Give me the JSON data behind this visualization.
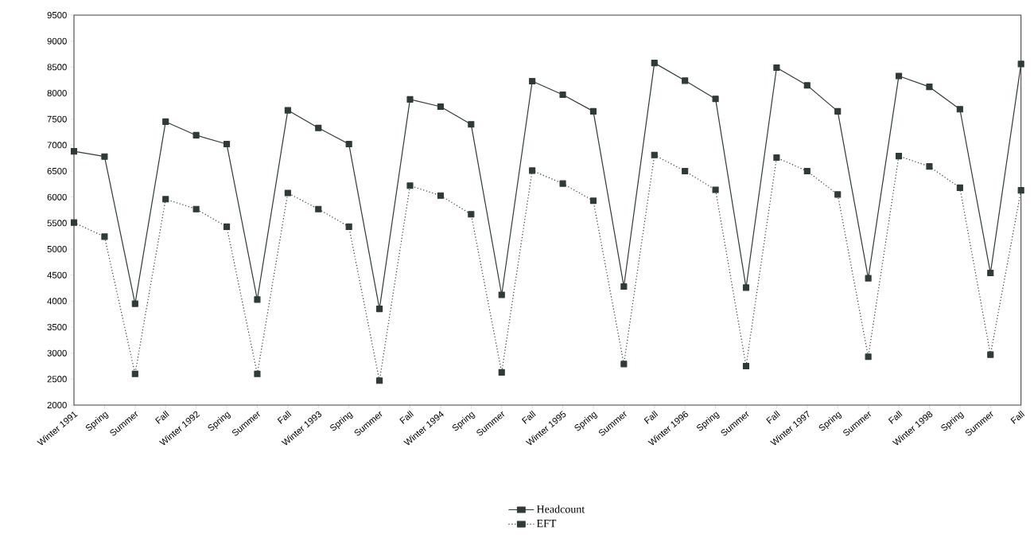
{
  "chart_data": {
    "type": "line",
    "categories": [
      "Winter 1991",
      "Spring",
      "Summer",
      "Fall",
      "Winter 1992",
      "Spring",
      "Summer",
      "Fall",
      "Winter 1993",
      "Spring",
      "Summer",
      "Fall",
      "Winter 1994",
      "Spring",
      "Summer",
      "Fall",
      "Winter 1995",
      "Spring",
      "Summer",
      "Fall",
      "Winter 1996",
      "Spring",
      "Summer",
      "Fall",
      "Winter 1997",
      "Spring",
      "Summer",
      "Fall",
      "Winter 1998",
      "Spring",
      "Summer",
      "Fall"
    ],
    "series": [
      {
        "name": "Headcount",
        "color": "#2f3b36",
        "line_style": "solid",
        "values": [
          6880,
          6780,
          3950,
          7450,
          7190,
          7020,
          4030,
          7670,
          7330,
          7020,
          3850,
          7880,
          7740,
          7400,
          4120,
          8230,
          7970,
          7650,
          4280,
          8580,
          8240,
          7890,
          4260,
          8490,
          8150,
          7650,
          4440,
          8330,
          8120,
          7690,
          4540,
          8560
        ]
      },
      {
        "name": "EFT",
        "color": "#2f3b36",
        "line_style": "dotted",
        "values": [
          5510,
          5240,
          2600,
          5960,
          5770,
          5430,
          2600,
          6080,
          5770,
          5430,
          2470,
          6220,
          6030,
          5670,
          2630,
          6510,
          6260,
          5930,
          2790,
          6810,
          6500,
          6140,
          2750,
          6760,
          6500,
          6050,
          2930,
          6790,
          6590,
          6180,
          2970,
          6130
        ]
      }
    ],
    "ylim": [
      2000,
      9500
    ],
    "yticks": [
      2000,
      2500,
      3000,
      3500,
      4000,
      4500,
      5000,
      5500,
      6000,
      6500,
      7000,
      7500,
      8000,
      8500,
      9000,
      9500
    ],
    "marker": "square",
    "legend": "bottom"
  }
}
